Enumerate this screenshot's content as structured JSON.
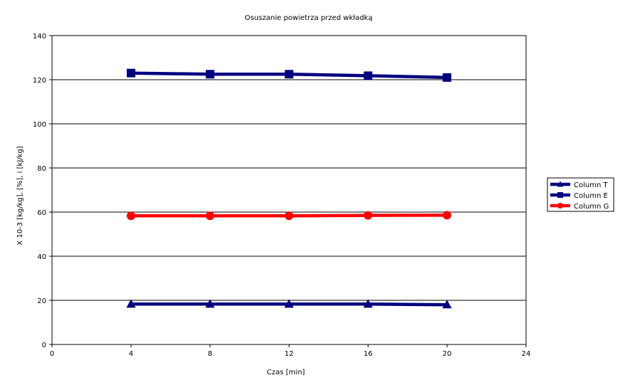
{
  "chart_data": {
    "type": "line",
    "title": "Osuszanie powietrza przed wkładką",
    "xlabel": "Czas [min]",
    "ylabel": "X  10-3 [kg/kg],    [%],   i [kJ/kg]",
    "xlim": [
      0,
      24
    ],
    "ylim": [
      0,
      140
    ],
    "xticks": [
      "0",
      "4",
      "8",
      "12",
      "16",
      "20",
      "24"
    ],
    "yticks": [
      "0",
      "20",
      "40",
      "60",
      "80",
      "100",
      "120",
      "140"
    ],
    "grid": "horizontal",
    "legend_position": "right",
    "series": [
      {
        "name": "Column T",
        "color": "#000080",
        "marker": "triangle",
        "points": [
          [
            4,
            18.3
          ],
          [
            8,
            18.3
          ],
          [
            12,
            18.3
          ],
          [
            16,
            18.3
          ],
          [
            20,
            18.0
          ]
        ]
      },
      {
        "name": "Column E",
        "color": "#000080",
        "marker": "square",
        "points": [
          [
            4,
            123.0
          ],
          [
            8,
            122.5
          ],
          [
            12,
            122.5
          ],
          [
            16,
            121.8
          ],
          [
            20,
            121.0
          ]
        ]
      },
      {
        "name": "Column G",
        "color": "#ff0000",
        "marker": "circle",
        "points": [
          [
            4,
            58.3
          ],
          [
            8,
            58.3
          ],
          [
            12,
            58.3
          ],
          [
            16,
            58.5
          ],
          [
            20,
            58.6
          ]
        ]
      }
    ]
  }
}
